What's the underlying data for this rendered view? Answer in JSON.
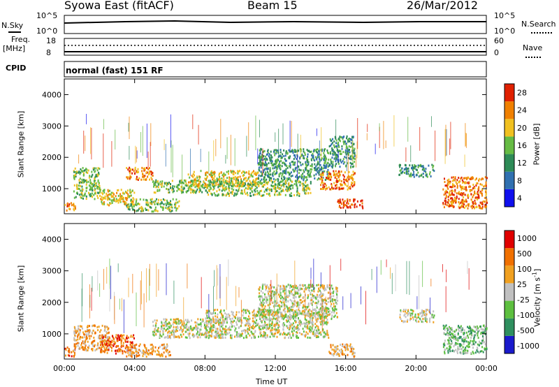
{
  "header": {
    "radar": "Syowa East (fitACF)",
    "beam": "Beam 15",
    "date": "26/Mar/2012"
  },
  "nsky_panel": {
    "left_label": "N.Sky",
    "left_ticks": [
      "10^5",
      "10^0"
    ],
    "right_label": "N.Search",
    "right_ticks": [
      "10^5",
      "10^0"
    ]
  },
  "freq_panel": {
    "left_label_1": "Freq.",
    "left_label_2": "[MHz]",
    "left_ticks": [
      "18",
      "8"
    ],
    "right_label": "Nave",
    "right_ticks": [
      "60",
      "0"
    ]
  },
  "cpid": {
    "label": "CPID",
    "value": "normal (fast) 151 RF"
  },
  "x_axis": {
    "label": "Time UT",
    "ticks": [
      "00:00",
      "04:00",
      "08:00",
      "12:00",
      "16:00",
      "20:00",
      "00:00"
    ]
  },
  "colors": {
    "power_scale": [
      "#1010ee",
      "#3070b0",
      "#2e8b57",
      "#66bb44",
      "#f0c020",
      "#f08000",
      "#e02000"
    ],
    "velocity_scale": [
      "#1a1acc",
      "#2f8f5f",
      "#5dbf3f",
      "#c0c0c0",
      "#f0a020",
      "#f07000",
      "#e00000"
    ]
  },
  "chart_data": [
    {
      "type": "heatmap",
      "name": "power",
      "ylabel": "Slant Range [km]",
      "yticks": [
        "1000",
        "2000",
        "3000",
        "4000"
      ],
      "ylim": [
        200,
        4500
      ],
      "xlim": [
        0,
        24
      ],
      "colorbar": {
        "label": "Power [dB]",
        "ticks": [
          "28",
          "24",
          "20",
          "16",
          "12",
          "8",
          "4"
        ],
        "range": [
          0,
          32
        ]
      },
      "regions": [
        {
          "t": [
            0.0,
            0.6
          ],
          "r": [
            300,
            600
          ],
          "level": 5
        },
        {
          "t": [
            0.5,
            2.0
          ],
          "r": [
            700,
            1700
          ],
          "level": 3
        },
        {
          "t": [
            2.0,
            4.0
          ],
          "r": [
            500,
            1000
          ],
          "level": 4
        },
        {
          "t": [
            3.5,
            6.5
          ],
          "r": [
            300,
            700
          ],
          "level": 3
        },
        {
          "t": [
            3.5,
            5.0
          ],
          "r": [
            1300,
            1700
          ],
          "level": 5
        },
        {
          "t": [
            5.0,
            8.0
          ],
          "r": [
            900,
            1300
          ],
          "level": 3
        },
        {
          "t": [
            7.0,
            11.0
          ],
          "r": [
            1100,
            1600
          ],
          "level": 4
        },
        {
          "t": [
            8.0,
            14.0
          ],
          "r": [
            800,
            1300
          ],
          "level": 3
        },
        {
          "t": [
            11.0,
            15.0
          ],
          "r": [
            1300,
            2300
          ],
          "level": 2
        },
        {
          "t": [
            14.5,
            16.5
          ],
          "r": [
            1000,
            1600
          ],
          "level": 5
        },
        {
          "t": [
            15.0,
            16.5
          ],
          "r": [
            1700,
            2700
          ],
          "level": 2
        },
        {
          "t": [
            15.5,
            17.0
          ],
          "r": [
            400,
            700
          ],
          "level": 6
        },
        {
          "t": [
            19.0,
            21.0
          ],
          "r": [
            1400,
            1800
          ],
          "level": 2
        },
        {
          "t": [
            21.5,
            24.0
          ],
          "r": [
            400,
            1400
          ],
          "level": 5
        }
      ]
    },
    {
      "type": "heatmap",
      "name": "velocity",
      "ylabel": "Slant Range [km]",
      "yticks": [
        "1000",
        "2000",
        "3000",
        "4000"
      ],
      "ylim": [
        200,
        4500
      ],
      "xlim": [
        0,
        24
      ],
      "colorbar": {
        "label": "Velocity [m s",
        "label_sup": "-1",
        "label_close": "]",
        "ticks": [
          "1000",
          "500",
          "100",
          "25",
          "-25",
          "-100",
          "-500",
          "-1000"
        ],
        "range": [
          -1200,
          1200
        ]
      },
      "regions": [
        {
          "t": [
            0.0,
            0.6
          ],
          "r": [
            300,
            600
          ],
          "level": 5
        },
        {
          "t": [
            0.5,
            2.5
          ],
          "r": [
            500,
            1300
          ],
          "level": 4
        },
        {
          "t": [
            2.0,
            4.0
          ],
          "r": [
            400,
            1000
          ],
          "level": 5
        },
        {
          "t": [
            3.5,
            6.0
          ],
          "r": [
            300,
            700
          ],
          "level": 4
        },
        {
          "t": [
            5.0,
            9.0
          ],
          "r": [
            900,
            1500
          ],
          "level": 3
        },
        {
          "t": [
            8.0,
            15.0
          ],
          "r": [
            900,
            1800
          ],
          "level": 3
        },
        {
          "t": [
            11.0,
            15.5
          ],
          "r": [
            1500,
            2600
          ],
          "level": 3
        },
        {
          "t": [
            15.0,
            16.5
          ],
          "r": [
            300,
            700
          ],
          "level": 4
        },
        {
          "t": [
            19.0,
            21.0
          ],
          "r": [
            1400,
            1800
          ],
          "level": 3
        },
        {
          "t": [
            21.5,
            24.0
          ],
          "r": [
            400,
            1300
          ],
          "level": 2
        }
      ]
    }
  ]
}
